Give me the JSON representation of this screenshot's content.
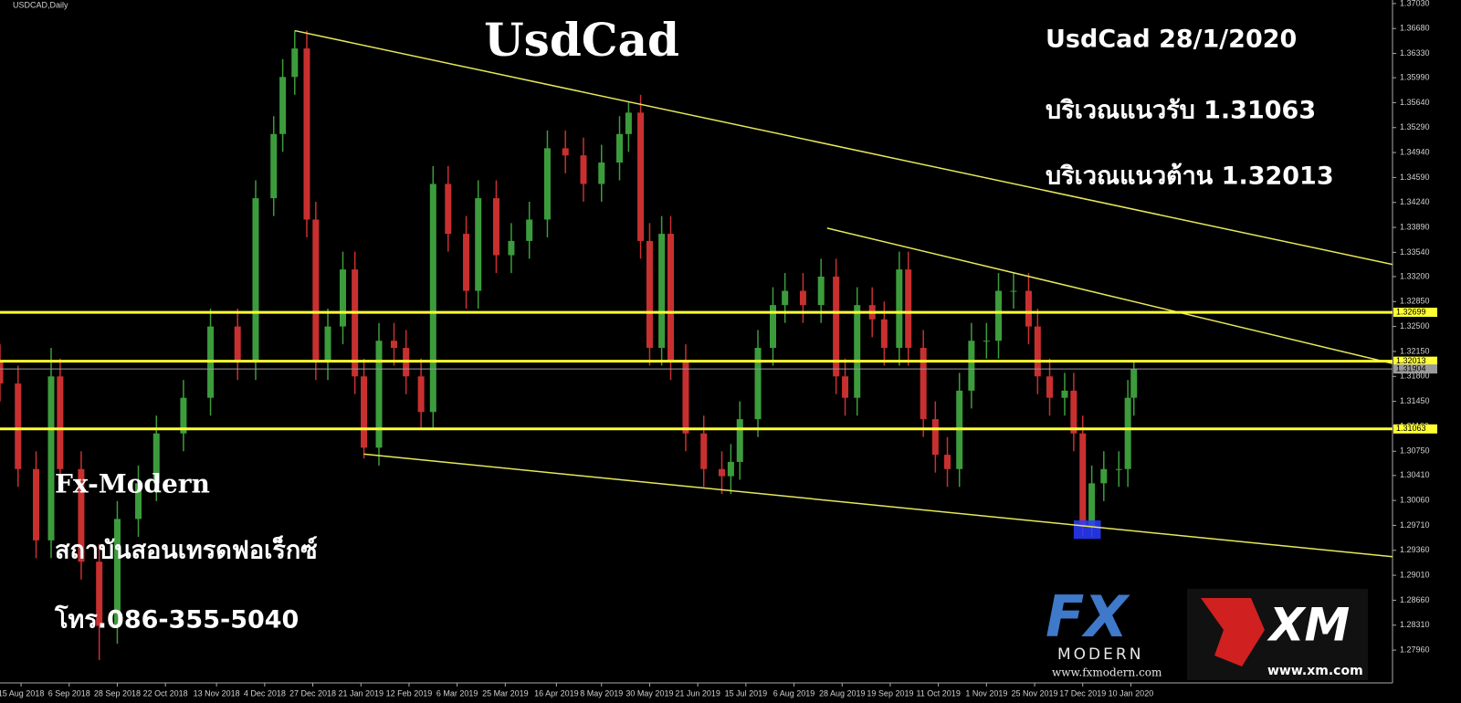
{
  "chart_data": {
    "type": "candlestick",
    "symbol": "USDCAD,Daily",
    "title": "UsdCad",
    "notes": [
      "UsdCad 28/1/2020",
      "บริเวณแนวรับ 1.31063",
      "บริเวณแนวต้าน 1.32013"
    ],
    "brand": [
      "Fx-Modern",
      "สถาบันสอนเทรดฟอเร็กซ์",
      "โทร.086-355-5040"
    ],
    "logos": {
      "fx": "FX",
      "modern": "MODERN",
      "fx_url": "www.fxmodern.com",
      "xm": "XM",
      "xm_url": "www.xm.com"
    },
    "up_color": "#3c9c3c",
    "down_color": "#c83030",
    "x": [
      0,
      6,
      12,
      17,
      20,
      27,
      33,
      39,
      46,
      52,
      61,
      70,
      79,
      85,
      91,
      94,
      98,
      102,
      105,
      109,
      114,
      118,
      121,
      126,
      131,
      135,
      140,
      144,
      149,
      155,
      159,
      165,
      170,
      176,
      182,
      188,
      194,
      200,
      206,
      209,
      213,
      216,
      220,
      223,
      228,
      234,
      240,
      243,
      246,
      252,
      257,
      261,
      267,
      273,
      278,
      281,
      285,
      290,
      294,
      299,
      302,
      307,
      311,
      315,
      319,
      323,
      328,
      332,
      337,
      342,
      345,
      349,
      354,
      357,
      360,
      363,
      367,
      372,
      375,
      377
    ],
    "open": [
      1.32,
      1.317,
      1.305,
      1.295,
      1.318,
      1.305,
      1.292,
      1.283,
      1.298,
      1.303,
      1.31,
      1.315,
      1.325,
      1.32,
      1.343,
      1.352,
      1.36,
      1.364,
      1.34,
      1.32,
      1.325,
      1.333,
      1.318,
      1.308,
      1.323,
      1.322,
      1.318,
      1.313,
      1.345,
      1.338,
      1.33,
      1.343,
      1.335,
      1.337,
      1.34,
      1.35,
      1.349,
      1.345,
      1.348,
      1.352,
      1.355,
      1.337,
      1.322,
      1.338,
      1.32,
      1.31,
      1.305,
      1.304,
      1.306,
      1.312,
      1.322,
      1.328,
      1.33,
      1.328,
      1.332,
      1.318,
      1.315,
      1.328,
      1.326,
      1.322,
      1.333,
      1.322,
      1.312,
      1.307,
      1.305,
      1.316,
      1.323,
      1.323,
      1.33,
      1.33,
      1.325,
      1.318,
      1.315,
      1.316,
      1.31,
      1.297,
      1.303,
      1.305,
      1.305,
      1.315
    ],
    "high": [
      1.3225,
      1.3195,
      1.3075,
      1.322,
      1.3205,
      1.3075,
      1.2945,
      1.3005,
      1.3055,
      1.3125,
      1.3175,
      1.3275,
      1.3275,
      1.3455,
      1.3545,
      1.3625,
      1.3665,
      1.3665,
      1.3425,
      1.3275,
      1.3355,
      1.3355,
      1.3205,
      1.3255,
      1.3255,
      1.3245,
      1.3205,
      1.3475,
      1.3475,
      1.3405,
      1.3455,
      1.3455,
      1.3395,
      1.3425,
      1.3525,
      1.3525,
      1.3515,
      1.3505,
      1.3545,
      1.3566,
      1.3575,
      1.3395,
      1.3405,
      1.3405,
      1.3225,
      1.3125,
      1.3075,
      1.3085,
      1.3145,
      1.3245,
      1.3305,
      1.3325,
      1.3325,
      1.3345,
      1.3345,
      1.3205,
      1.3305,
      1.3305,
      1.3285,
      1.3355,
      1.3355,
      1.3245,
      1.3145,
      1.3095,
      1.3185,
      1.3255,
      1.3255,
      1.3325,
      1.3325,
      1.3325,
      1.3275,
      1.3205,
      1.3185,
      1.3185,
      1.3125,
      1.3055,
      1.3075,
      1.3075,
      1.3175,
      1.32
    ],
    "low": [
      1.3145,
      1.3025,
      1.2925,
      1.2925,
      1.3025,
      1.2895,
      1.2782,
      1.2805,
      1.2955,
      1.3005,
      1.3075,
      1.3125,
      1.3175,
      1.3175,
      1.3405,
      1.3495,
      1.3575,
      1.3375,
      1.3175,
      1.3175,
      1.3225,
      1.3155,
      1.3065,
      1.3055,
      1.3195,
      1.3155,
      1.3105,
      1.3105,
      1.3355,
      1.3275,
      1.3275,
      1.3325,
      1.3325,
      1.3345,
      1.3375,
      1.3465,
      1.3425,
      1.3425,
      1.3455,
      1.3495,
      1.3345,
      1.3195,
      1.3195,
      1.3175,
      1.3075,
      1.3025,
      1.3015,
      1.3015,
      1.3035,
      1.3095,
      1.3195,
      1.3255,
      1.3255,
      1.3255,
      1.3155,
      1.3125,
      1.3125,
      1.3235,
      1.3195,
      1.3195,
      1.3195,
      1.3095,
      1.3045,
      1.3025,
      1.3025,
      1.3135,
      1.3205,
      1.3205,
      1.3275,
      1.3225,
      1.3155,
      1.3125,
      1.3125,
      1.3075,
      1.2956,
      1.2955,
      1.3005,
      1.3025,
      1.3025,
      1.3125
    ],
    "close": [
      1.317,
      1.305,
      1.295,
      1.318,
      1.305,
      1.292,
      1.283,
      1.298,
      1.303,
      1.31,
      1.315,
      1.325,
      1.32,
      1.343,
      1.352,
      1.36,
      1.364,
      1.34,
      1.32,
      1.325,
      1.333,
      1.318,
      1.308,
      1.323,
      1.322,
      1.318,
      1.313,
      1.345,
      1.338,
      1.33,
      1.343,
      1.335,
      1.337,
      1.34,
      1.35,
      1.349,
      1.345,
      1.348,
      1.352,
      1.355,
      1.337,
      1.322,
      1.338,
      1.32,
      1.31,
      1.305,
      1.304,
      1.306,
      1.312,
      1.322,
      1.328,
      1.33,
      1.328,
      1.332,
      1.318,
      1.315,
      1.328,
      1.326,
      1.322,
      1.333,
      1.322,
      1.312,
      1.307,
      1.305,
      1.316,
      1.323,
      1.323,
      1.33,
      1.33,
      1.325,
      1.318,
      1.315,
      1.316,
      1.31,
      1.297,
      1.303,
      1.305,
      1.305,
      1.315,
      1.319
    ],
    "xlim": [
      0,
      463
    ],
    "xticks": [
      {
        "value": 7,
        "label": "15 Aug 2018"
      },
      {
        "value": 23,
        "label": "6 Sep 2018"
      },
      {
        "value": 39,
        "label": "28 Sep 2018"
      },
      {
        "value": 55,
        "label": "22 Oct 2018"
      },
      {
        "value": 72,
        "label": "13 Nov 2018"
      },
      {
        "value": 88,
        "label": "4 Dec 2018"
      },
      {
        "value": 104,
        "label": "27 Dec 2018"
      },
      {
        "value": 120,
        "label": "21 Jan 2019"
      },
      {
        "value": 136,
        "label": "12 Feb 2019"
      },
      {
        "value": 152,
        "label": "6 Mar 2019"
      },
      {
        "value": 168,
        "label": "25 Mar 2019"
      },
      {
        "value": 185,
        "label": "16 Apr 2019"
      },
      {
        "value": 200,
        "label": "8 May 2019"
      },
      {
        "value": 216,
        "label": "30 May 2019"
      },
      {
        "value": 232,
        "label": "21 Jun 2019"
      },
      {
        "value": 248,
        "label": "15 Jul 2019"
      },
      {
        "value": 264,
        "label": "6 Aug 2019"
      },
      {
        "value": 280,
        "label": "28 Aug 2019"
      },
      {
        "value": 296,
        "label": "19 Sep 2019"
      },
      {
        "value": 312,
        "label": "11 Oct 2019"
      },
      {
        "value": 328,
        "label": "1 Nov 2019"
      },
      {
        "value": 344,
        "label": "25 Nov 2019"
      },
      {
        "value": 360,
        "label": "17 Dec 2019"
      },
      {
        "value": 376,
        "label": "10 Jan 2020"
      }
    ],
    "ylim": [
      1.275,
      1.3708
    ],
    "yticks": [
      {
        "value": 1.3703,
        "label": "1.37030"
      },
      {
        "value": 1.3668,
        "label": "1.36680"
      },
      {
        "value": 1.3633,
        "label": "1.36330"
      },
      {
        "value": 1.3599,
        "label": "1.35990"
      },
      {
        "value": 1.3564,
        "label": "1.35640"
      },
      {
        "value": 1.3529,
        "label": "1.35290"
      },
      {
        "value": 1.3494,
        "label": "1.34940"
      },
      {
        "value": 1.3459,
        "label": "1.34590"
      },
      {
        "value": 1.3424,
        "label": "1.34240"
      },
      {
        "value": 1.3389,
        "label": "1.33890"
      },
      {
        "value": 1.3354,
        "label": "1.33540"
      },
      {
        "value": 1.332,
        "label": "1.33200"
      },
      {
        "value": 1.3285,
        "label": "1.32850"
      },
      {
        "value": 1.325,
        "label": "1.32500"
      },
      {
        "value": 1.3215,
        "label": "1.32150"
      },
      {
        "value": 1.318,
        "label": "1.31800"
      },
      {
        "value": 1.3145,
        "label": "1.31450"
      },
      {
        "value": 1.311,
        "label": "1.31100"
      },
      {
        "value": 1.3075,
        "label": "1.30750"
      },
      {
        "value": 1.3041,
        "label": "1.30410"
      },
      {
        "value": 1.3006,
        "label": "1.30060"
      },
      {
        "value": 1.2971,
        "label": "1.29710"
      },
      {
        "value": 1.2936,
        "label": "1.29360"
      },
      {
        "value": 1.2901,
        "label": "1.29010"
      },
      {
        "value": 1.2866,
        "label": "1.28660"
      },
      {
        "value": 1.2831,
        "label": "1.28310"
      },
      {
        "value": 1.2796,
        "label": "1.27960"
      }
    ],
    "levels": [
      {
        "value": 1.32699,
        "color": "#ffff33"
      },
      {
        "value": 1.32013,
        "color": "#ffff33"
      },
      {
        "value": 1.31904,
        "color": "#9a9a9a"
      },
      {
        "value": 1.31063,
        "color": "#ffff33"
      }
    ],
    "trendlines": [
      {
        "x": [
          98,
          463
        ],
        "y": [
          1.3665,
          1.3337
        ]
      },
      {
        "x": [
          275,
          463
        ],
        "y": [
          1.3388,
          1.3198
        ]
      },
      {
        "x": [
          121,
          463
        ],
        "y": [
          1.3071,
          1.2927
        ]
      }
    ],
    "trend_color": "#e8e85a",
    "box": {
      "x": [
        357,
        366
      ],
      "y": [
        1.2978,
        1.2952
      ],
      "color": "#2a3cff"
    }
  }
}
